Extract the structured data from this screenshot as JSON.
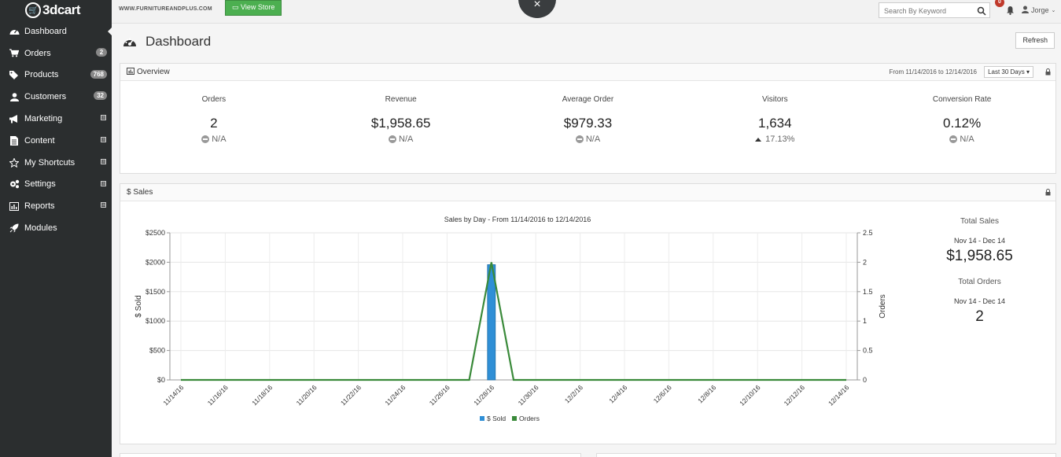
{
  "app": {
    "logo": "3dcart"
  },
  "sidebar": {
    "items": [
      {
        "label": "Dashboard",
        "icon": "gauge-icon",
        "badge": "",
        "expand": ""
      },
      {
        "label": "Orders",
        "icon": "cart-icon",
        "badge": "2",
        "expand": ""
      },
      {
        "label": "Products",
        "icon": "tags-icon",
        "badge": "768",
        "expand": ""
      },
      {
        "label": "Customers",
        "icon": "user-icon",
        "badge": "32",
        "expand": ""
      },
      {
        "label": "Marketing",
        "icon": "megaphone-icon",
        "badge": "",
        "expand": "⊞"
      },
      {
        "label": "Content",
        "icon": "document-icon",
        "badge": "",
        "expand": "⊞"
      },
      {
        "label": "My Shortcuts",
        "icon": "star-icon",
        "badge": "",
        "expand": "⊞"
      },
      {
        "label": "Settings",
        "icon": "gears-icon",
        "badge": "",
        "expand": "⊞"
      },
      {
        "label": "Reports",
        "icon": "bar-chart-icon",
        "badge": "",
        "expand": "⊞"
      },
      {
        "label": "Modules",
        "icon": "rocket-icon",
        "badge": "",
        "expand": ""
      }
    ]
  },
  "topbar": {
    "store_url": "WWW.FURNITUREANDPLUS.COM",
    "view_store": "View Store",
    "close": "×",
    "search_placeholder": "Search By Keyword",
    "notifications": "0",
    "user": "Jorge"
  },
  "header": {
    "title": "Dashboard",
    "refresh": "Refresh"
  },
  "overview": {
    "title": "Overview",
    "range": "From 11/14/2016 to 12/14/2016",
    "period": "Last 30 Days ▾",
    "metrics": [
      {
        "label": "Orders",
        "value": "2",
        "change": "N/A",
        "trend": "na"
      },
      {
        "label": "Revenue",
        "value": "$1,958.65",
        "change": "N/A",
        "trend": "na"
      },
      {
        "label": "Average Order",
        "value": "$979.33",
        "change": "N/A",
        "trend": "na"
      },
      {
        "label": "Visitors",
        "value": "1,634",
        "change": "17.13%",
        "trend": "up"
      },
      {
        "label": "Conversion Rate",
        "value": "0.12%",
        "change": "N/A",
        "trend": "na"
      }
    ]
  },
  "sales": {
    "title": "$ Sales",
    "totals": {
      "sales_label": "Total Sales",
      "sales_range": "Nov 14 - Dec 14",
      "sales_value": "$1,958.65",
      "orders_label": "Total Orders",
      "orders_range": "Nov 14 - Dec 14",
      "orders_value": "2"
    }
  },
  "chart_data": {
    "type": "bar",
    "title": "Sales by Day - From 11/14/2016 to 12/14/2016",
    "ylabel": "$ Sold",
    "y2label": "Orders",
    "ylim": [
      0,
      2500
    ],
    "y2lim": [
      0,
      2.5
    ],
    "yticks": [
      "$0",
      "$500",
      "$1000",
      "$1500",
      "$2000",
      "$2500"
    ],
    "y2ticks": [
      "0",
      "0.5",
      "1",
      "1.5",
      "2",
      "2.5"
    ],
    "xticks": [
      "11/14/16",
      "11/16/16",
      "11/18/16",
      "11/20/16",
      "11/22/16",
      "11/24/16",
      "11/26/16",
      "11/28/16",
      "11/30/16",
      "12/2/16",
      "12/4/16",
      "12/6/16",
      "12/8/16",
      "12/10/16",
      "12/12/16",
      "12/14/16"
    ],
    "legend": [
      "$ Sold",
      "Orders"
    ],
    "series": [
      {
        "name": "$ Sold",
        "type": "bar",
        "points": [
          [
            "11/28/16",
            1958.65
          ]
        ],
        "color": "#2f8fd6"
      },
      {
        "name": "Orders",
        "type": "line",
        "points": [
          [
            "11/14/16",
            0
          ],
          [
            "11/27/16",
            0
          ],
          [
            "11/28/16",
            2
          ],
          [
            "11/29/16",
            0
          ],
          [
            "12/14/16",
            0
          ]
        ],
        "color": "#3a8a3a"
      }
    ],
    "grid": true
  }
}
